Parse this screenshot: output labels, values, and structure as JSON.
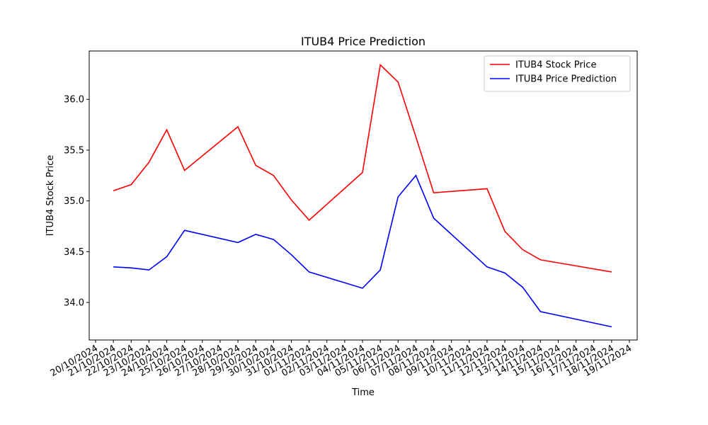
{
  "chart_data": {
    "type": "line",
    "title": "ITUB4 Price Prediction",
    "xlabel": "Time",
    "ylabel": "ITUB4 Stock Price",
    "x": [
      "21/10/2024",
      "22/10/2024",
      "23/10/2024",
      "24/10/2024",
      "25/10/2024",
      "28/10/2024",
      "29/10/2024",
      "30/10/2024",
      "31/10/2024",
      "01/11/2024",
      "04/11/2024",
      "05/11/2024",
      "06/11/2024",
      "07/11/2024",
      "08/11/2024",
      "11/11/2024",
      "12/11/2024",
      "13/11/2024",
      "14/11/2024",
      "18/11/2024"
    ],
    "series": [
      {
        "name": "ITUB4 Stock Price",
        "color": "#ff0000",
        "values": [
          35.1,
          35.16,
          35.38,
          35.7,
          35.3,
          35.73,
          35.35,
          35.25,
          35.01,
          34.81,
          35.28,
          36.34,
          36.17,
          35.63,
          35.08,
          35.12,
          34.7,
          34.52,
          34.42,
          34.3
        ]
      },
      {
        "name": "ITUB4 Price Prediction",
        "color": "#0000ff",
        "values": [
          34.35,
          34.34,
          34.32,
          34.45,
          34.71,
          34.59,
          34.67,
          34.62,
          34.47,
          34.3,
          34.14,
          34.32,
          35.04,
          35.25,
          34.83,
          34.35,
          34.29,
          34.15,
          33.91,
          33.76
        ]
      }
    ],
    "xlim": [
      "20/10/2024",
      "19/11/2024"
    ],
    "xticks": [
      "20/10/2024",
      "21/10/2024",
      "22/10/2024",
      "23/10/2024",
      "24/10/2024",
      "25/10/2024",
      "26/10/2024",
      "27/10/2024",
      "28/10/2024",
      "29/10/2024",
      "30/10/2024",
      "31/10/2024",
      "01/11/2024",
      "02/11/2024",
      "03/11/2024",
      "04/11/2024",
      "05/11/2024",
      "06/11/2024",
      "07/11/2024",
      "08/11/2024",
      "09/11/2024",
      "10/11/2024",
      "11/11/2024",
      "12/11/2024",
      "13/11/2024",
      "14/11/2024",
      "15/11/2024",
      "16/11/2024",
      "17/11/2024",
      "18/11/2024",
      "19/11/2024"
    ],
    "ylim": [
      33.63,
      36.476
    ],
    "yticks": [
      {
        "value": 34.0,
        "label": "34.0"
      },
      {
        "value": 34.5,
        "label": "34.5"
      },
      {
        "value": 35.0,
        "label": "35.0"
      },
      {
        "value": 35.5,
        "label": "35.5"
      },
      {
        "value": 36.0,
        "label": "36.0"
      }
    ],
    "legend": "upper right"
  }
}
